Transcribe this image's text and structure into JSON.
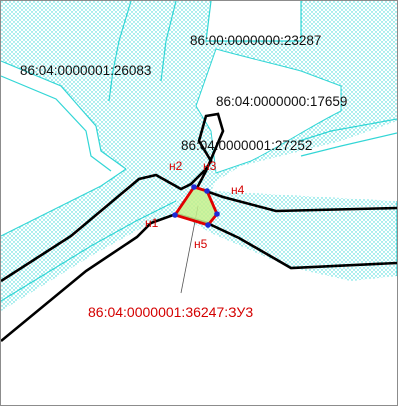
{
  "map": {
    "parcels": [
      {
        "cadastral_number": "86:00:0000000:23287"
      },
      {
        "cadastral_number": "86:04:0000001:26083"
      },
      {
        "cadastral_number": "86:04:0000000:17659"
      },
      {
        "cadastral_number": "86:04:0000001:27252"
      }
    ],
    "target_parcel": {
      "cadastral_number": "86:04:0000001:36247:ЗУ3"
    },
    "points": [
      "н1",
      "н2",
      "н3",
      "н4",
      "н5"
    ],
    "colors": {
      "target_outline": "#e00000",
      "target_fill": "#c6f08c",
      "hatch": "#33d6d6",
      "boundary": "#000000",
      "point": "#1d2bd6",
      "label_red": "#d40000"
    }
  }
}
